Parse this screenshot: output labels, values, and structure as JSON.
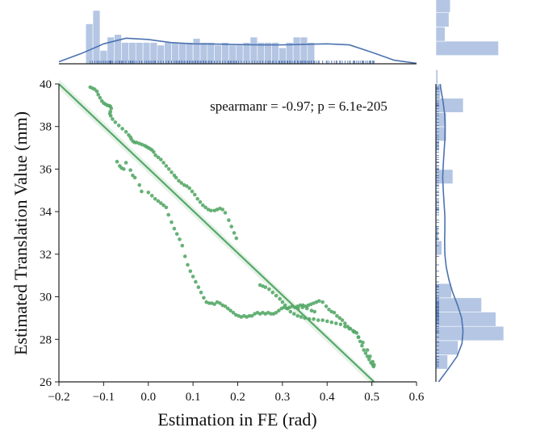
{
  "chart_data": {
    "type": "scatter",
    "joint": true,
    "title": "",
    "xlabel": "Estimation in FE (rad)",
    "ylabel": "Estimated Translation Value (mm)",
    "xlim": [
      -0.2,
      0.6
    ],
    "ylim": [
      26,
      40
    ],
    "xticks": [
      -0.2,
      -0.1,
      0.0,
      0.1,
      0.2,
      0.3,
      0.4,
      0.5,
      0.6
    ],
    "xtick_labels": [
      "−0.2",
      "−0.1",
      "0.0",
      "0.1",
      "0.2",
      "0.3",
      "0.4",
      "0.5",
      "0.6"
    ],
    "yticks": [
      26,
      28,
      30,
      32,
      34,
      36,
      38,
      40
    ],
    "ytick_labels": [
      "26",
      "28",
      "30",
      "32",
      "34",
      "36",
      "38",
      "40"
    ],
    "annotation": "spearmanr = -0.97; p = 6.1e-205",
    "grid": false,
    "colors": {
      "points": "#55a868",
      "fit": "#55a868",
      "marginal": "#4c72b0",
      "marginal_fill": "#b4c6e3"
    },
    "regression": {
      "x": [
        -0.2,
        0.505
      ],
      "y": [
        40.0,
        26.0
      ]
    },
    "series": [
      {
        "points": [
          [
            -0.13,
            39.85
          ],
          [
            -0.125,
            39.8
          ],
          [
            -0.12,
            39.75
          ],
          [
            -0.115,
            39.65
          ],
          [
            -0.112,
            39.5
          ],
          [
            -0.108,
            39.35
          ],
          [
            -0.104,
            39.2
          ],
          [
            -0.1,
            39.1
          ],
          [
            -0.096,
            39.05
          ],
          [
            -0.092,
            39.0
          ],
          [
            -0.088,
            38.98
          ],
          [
            -0.085,
            38.95
          ],
          [
            -0.083,
            38.85
          ],
          [
            -0.085,
            38.7
          ],
          [
            -0.086,
            38.6
          ],
          [
            -0.084,
            38.5
          ],
          [
            -0.08,
            38.35
          ],
          [
            -0.074,
            38.2
          ],
          [
            -0.066,
            38.05
          ],
          [
            -0.058,
            37.9
          ],
          [
            -0.05,
            37.75
          ],
          [
            -0.044,
            37.6
          ],
          [
            -0.04,
            37.5
          ],
          [
            -0.038,
            37.4
          ],
          [
            -0.034,
            37.3
          ],
          [
            -0.03,
            37.25
          ],
          [
            -0.026,
            37.25
          ],
          [
            -0.02,
            37.2
          ],
          [
            -0.014,
            37.15
          ],
          [
            -0.008,
            37.1
          ],
          [
            -0.004,
            37.05
          ],
          [
            0.0,
            37.0
          ],
          [
            0.004,
            36.95
          ],
          [
            0.008,
            36.9
          ],
          [
            0.012,
            36.8
          ],
          [
            0.016,
            36.65
          ],
          [
            0.022,
            36.55
          ],
          [
            0.028,
            36.45
          ],
          [
            0.034,
            36.3
          ],
          [
            0.04,
            36.15
          ],
          [
            0.046,
            36.0
          ],
          [
            0.052,
            35.85
          ],
          [
            0.058,
            35.7
          ],
          [
            0.062,
            35.6
          ],
          [
            0.068,
            35.45
          ],
          [
            0.074,
            35.35
          ],
          [
            0.08,
            35.25
          ],
          [
            0.086,
            35.2
          ],
          [
            0.092,
            35.1
          ],
          [
            0.098,
            34.95
          ],
          [
            0.104,
            34.8
          ],
          [
            0.11,
            34.6
          ],
          [
            0.116,
            34.45
          ],
          [
            0.122,
            34.3
          ],
          [
            0.128,
            34.2
          ],
          [
            0.134,
            34.1
          ],
          [
            0.14,
            34.05
          ],
          [
            0.148,
            34.05
          ],
          [
            0.154,
            34.1
          ],
          [
            0.16,
            34.15
          ],
          [
            0.166,
            34.1
          ],
          [
            0.172,
            33.95
          ],
          [
            0.18,
            33.6
          ],
          [
            0.186,
            33.3
          ],
          [
            0.192,
            33.0
          ],
          [
            0.197,
            32.75
          ],
          [
            -0.07,
            36.35
          ],
          [
            -0.064,
            36.15
          ],
          [
            -0.06,
            36.05
          ],
          [
            -0.055,
            36.0
          ],
          [
            -0.05,
            36.3
          ],
          [
            -0.04,
            35.95
          ],
          [
            -0.035,
            35.7
          ],
          [
            -0.03,
            35.6
          ],
          [
            -0.02,
            35.25
          ],
          [
            -0.015,
            34.95
          ],
          [
            0.0,
            34.9
          ],
          [
            0.008,
            34.75
          ],
          [
            0.015,
            34.6
          ],
          [
            0.022,
            34.5
          ],
          [
            0.028,
            34.4
          ],
          [
            0.034,
            34.3
          ],
          [
            0.04,
            34.2
          ],
          [
            0.045,
            33.85
          ],
          [
            0.052,
            33.5
          ],
          [
            0.058,
            33.2
          ],
          [
            0.064,
            32.95
          ],
          [
            0.07,
            32.7
          ],
          [
            0.076,
            32.4
          ],
          [
            0.082,
            31.9
          ],
          [
            0.088,
            31.5
          ],
          [
            0.094,
            31.2
          ],
          [
            0.1,
            30.95
          ],
          [
            0.106,
            30.7
          ],
          [
            0.112,
            30.45
          ],
          [
            0.118,
            30.2
          ],
          [
            0.124,
            29.95
          ],
          [
            0.13,
            29.75
          ],
          [
            0.136,
            29.7
          ],
          [
            0.142,
            29.7
          ],
          [
            0.148,
            29.65
          ],
          [
            0.154,
            29.75
          ],
          [
            0.16,
            29.7
          ],
          [
            0.166,
            29.6
          ],
          [
            0.172,
            29.55
          ],
          [
            0.178,
            29.45
          ],
          [
            0.184,
            29.35
          ],
          [
            0.19,
            29.25
          ],
          [
            0.196,
            29.15
          ],
          [
            0.202,
            29.1
          ],
          [
            0.208,
            29.05
          ],
          [
            0.214,
            29.1
          ],
          [
            0.22,
            29.05
          ],
          [
            0.226,
            29.1
          ],
          [
            0.232,
            29.1
          ],
          [
            0.238,
            29.2
          ],
          [
            0.244,
            29.25
          ],
          [
            0.25,
            29.2
          ],
          [
            0.256,
            29.25
          ],
          [
            0.262,
            29.2
          ],
          [
            0.268,
            29.25
          ],
          [
            0.274,
            29.2
          ],
          [
            0.28,
            29.2
          ],
          [
            0.286,
            29.25
          ],
          [
            0.292,
            29.35
          ],
          [
            0.298,
            29.45
          ],
          [
            0.304,
            29.5
          ],
          [
            0.31,
            29.45
          ],
          [
            0.316,
            29.5
          ],
          [
            0.322,
            29.55
          ],
          [
            0.328,
            29.5
          ],
          [
            0.334,
            29.55
          ],
          [
            0.34,
            29.6
          ],
          [
            0.346,
            29.6
          ],
          [
            0.352,
            29.55
          ],
          [
            0.358,
            29.6
          ],
          [
            0.364,
            29.65
          ],
          [
            0.37,
            29.7
          ],
          [
            0.376,
            29.75
          ],
          [
            0.382,
            29.8
          ],
          [
            0.39,
            29.75
          ],
          [
            0.398,
            29.55
          ],
          [
            0.404,
            29.4
          ],
          [
            0.41,
            29.3
          ],
          [
            0.416,
            29.25
          ],
          [
            0.422,
            29.1
          ],
          [
            0.428,
            29.0
          ],
          [
            0.434,
            28.9
          ],
          [
            0.44,
            28.75
          ],
          [
            0.446,
            28.6
          ],
          [
            0.452,
            28.5
          ],
          [
            0.458,
            28.4
          ],
          [
            0.462,
            28.35
          ],
          [
            0.466,
            28.3
          ],
          [
            0.47,
            28.1
          ],
          [
            0.474,
            27.9
          ],
          [
            0.478,
            27.7
          ],
          [
            0.482,
            27.5
          ],
          [
            0.486,
            27.35
          ],
          [
            0.49,
            27.2
          ],
          [
            0.494,
            27.05
          ],
          [
            0.498,
            26.9
          ],
          [
            0.502,
            26.8
          ],
          [
            0.504,
            26.72
          ],
          [
            0.25,
            30.55
          ],
          [
            0.256,
            30.5
          ],
          [
            0.262,
            30.45
          ],
          [
            0.27,
            30.35
          ],
          [
            0.278,
            30.2
          ],
          [
            0.286,
            30.05
          ],
          [
            0.294,
            29.9
          ],
          [
            0.3,
            29.75
          ],
          [
            0.306,
            29.6
          ],
          [
            0.312,
            29.45
          ],
          [
            0.318,
            29.3
          ],
          [
            0.326,
            29.2
          ],
          [
            0.334,
            29.1
          ],
          [
            0.342,
            29.05
          ],
          [
            0.35,
            29.0
          ],
          [
            0.36,
            28.95
          ],
          [
            0.37,
            28.95
          ],
          [
            0.38,
            28.9
          ],
          [
            0.39,
            28.9
          ],
          [
            0.4,
            28.85
          ],
          [
            0.41,
            28.8
          ],
          [
            0.42,
            28.75
          ],
          [
            0.43,
            28.7
          ],
          [
            0.44,
            28.6
          ],
          [
            0.45,
            28.5
          ],
          [
            0.46,
            28.35
          ],
          [
            0.47,
            28.1
          ],
          [
            0.48,
            27.85
          ],
          [
            0.49,
            27.5
          ],
          [
            0.496,
            27.2
          ],
          [
            0.502,
            26.95
          ],
          [
            0.505,
            26.8
          ],
          [
            0.335,
            29.45
          ],
          [
            0.345,
            29.5
          ],
          [
            0.355,
            29.45
          ],
          [
            0.365,
            29.35
          ],
          [
            0.372,
            29.3
          ]
        ]
      }
    ],
    "marginal_x": {
      "bins_start": -0.14,
      "bin_width": 0.016,
      "counts": [
        3,
        4,
        1,
        2,
        2.2,
        1.6,
        1.6,
        1.6,
        1.6,
        1.6,
        1.4,
        1.6,
        1.6,
        1.6,
        1.6,
        1.9,
        1.6,
        1.6,
        1.4,
        1.6,
        1.4,
        1.4,
        1.6,
        2.0,
        1.6,
        1.6,
        1.6,
        1.2,
        1.6,
        2.0,
        2.0,
        1.6
      ],
      "density": [
        [
          -0.2,
          0.08
        ],
        [
          -0.15,
          0.4
        ],
        [
          -0.1,
          0.78
        ],
        [
          -0.05,
          1.0
        ],
        [
          0.0,
          0.95
        ],
        [
          0.05,
          0.83
        ],
        [
          0.1,
          0.78
        ],
        [
          0.15,
          0.77
        ],
        [
          0.2,
          0.75
        ],
        [
          0.25,
          0.74
        ],
        [
          0.3,
          0.74
        ],
        [
          0.35,
          0.76
        ],
        [
          0.4,
          0.78
        ],
        [
          0.45,
          0.74
        ],
        [
          0.5,
          0.45
        ],
        [
          0.55,
          0.14
        ],
        [
          0.6,
          0.02
        ]
      ]
    },
    "marginal_y": {
      "bins_start": 26.6,
      "bin_width": 0.67,
      "counts": [
        0.9,
        1.7,
        5.2,
        4.6,
        3.5,
        1.2,
        0,
        0,
        0.45,
        0.2,
        0,
        0,
        0,
        1.3,
        0,
        0,
        0.8,
        0.8,
        2.1,
        0.35,
        0.15,
        0,
        4.8,
        0.7,
        1.0,
        1.1,
        0.6
      ],
      "density": [
        [
          26.0,
          0.1
        ],
        [
          26.6,
          0.45
        ],
        [
          27.2,
          0.78
        ],
        [
          27.8,
          0.96
        ],
        [
          28.4,
          1.0
        ],
        [
          29.0,
          0.95
        ],
        [
          29.6,
          0.8
        ],
        [
          30.2,
          0.62
        ],
        [
          30.8,
          0.48
        ],
        [
          31.4,
          0.38
        ],
        [
          32.0,
          0.33
        ],
        [
          32.6,
          0.32
        ],
        [
          33.2,
          0.33
        ],
        [
          33.8,
          0.33
        ],
        [
          34.4,
          0.3
        ],
        [
          35.0,
          0.27
        ],
        [
          35.6,
          0.25
        ],
        [
          36.2,
          0.27
        ],
        [
          36.8,
          0.3
        ],
        [
          37.4,
          0.33
        ],
        [
          38.0,
          0.34
        ],
        [
          38.6,
          0.32
        ],
        [
          39.2,
          0.26
        ],
        [
          39.8,
          0.18
        ],
        [
          40.0,
          0.16
        ]
      ]
    }
  }
}
